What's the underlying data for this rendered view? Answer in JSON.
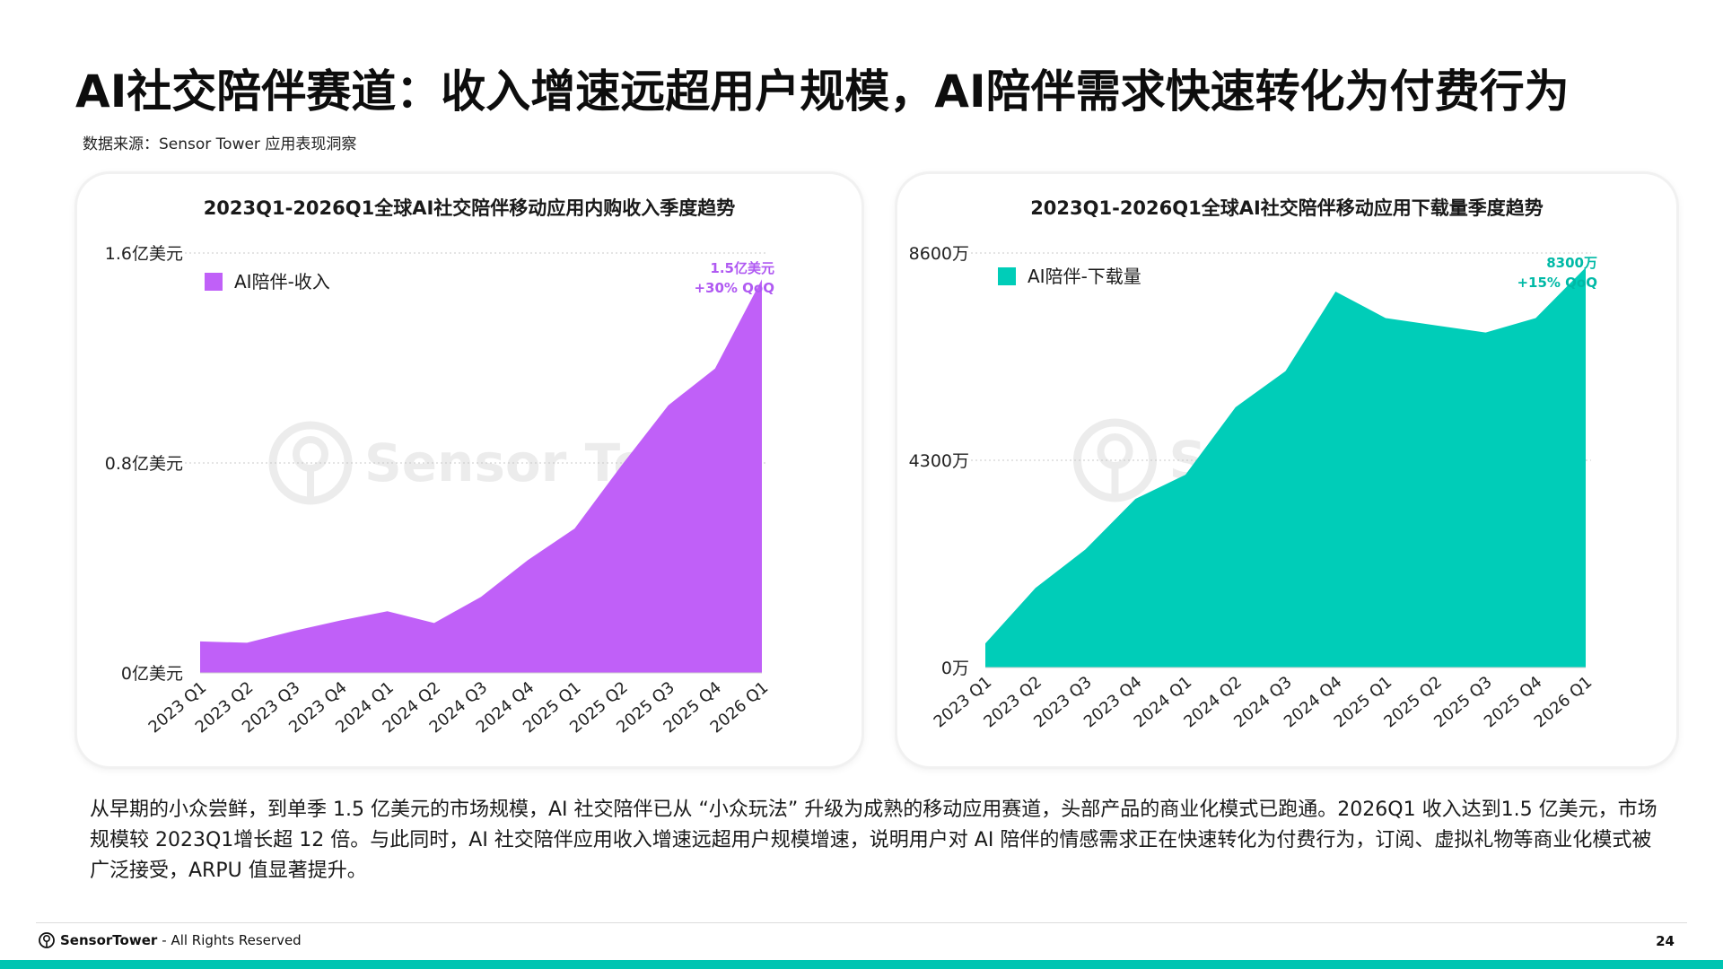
{
  "title": "AI社交陪伴赛道：收入增速远超用户规模，AI陪伴需求快速转化为付费行为",
  "source": "数据来源：Sensor Tower 应用表现洞察",
  "watermark": "Sensor Tower",
  "description": "从早期的小众尝鲜，到单季 1.5 亿美元的市场规模，AI 社交陪伴已从 “小众玩法” 升级为成熟的移动应用赛道，头部产品的商业化模式已跑通。2026Q1 收入达到1.5 亿美元，市场规模较 2023Q1增长超 12 倍。与此同时，AI 社交陪伴应用收入增速远超用户规模增速，说明用户对 AI 陪伴的情感需求正在快速转化为付费行为，订阅、虚拟礼物等商业化模式被广泛接受，ARPU 值显著提升。",
  "footer": {
    "brand": "SensorTower",
    "rights": "- All Rights Reserved",
    "page_number": "24"
  },
  "colors": {
    "revenue": "#c060f8",
    "downloads": "#00cdb8",
    "accent_bar": "#00c5b2"
  },
  "chart_data": [
    {
      "type": "area",
      "title": "2023Q1-2026Q1全球AI社交陪伴移动应用内购收入季度趋势",
      "categories": [
        "2023 Q1",
        "2023 Q2",
        "2023 Q3",
        "2023 Q4",
        "2024 Q1",
        "2024 Q2",
        "2024 Q3",
        "2024 Q4",
        "2025 Q1",
        "2025 Q2",
        "2025 Q3",
        "2025 Q4",
        "2026 Q1"
      ],
      "series": [
        {
          "name": "AI陪伴-收入",
          "color": "#c060f8",
          "values": [
            0.12,
            0.115,
            0.16,
            0.2,
            0.235,
            0.19,
            0.29,
            0.43,
            0.55,
            0.79,
            1.02,
            1.16,
            1.5
          ]
        }
      ],
      "ylim": [
        0,
        1.6
      ],
      "yticks": [
        0,
        0.8,
        1.6
      ],
      "ytick_labels": [
        "0亿美元",
        "0.8亿美元",
        "1.6亿美元"
      ],
      "annotation": [
        "1.5亿美元",
        "+30% QoQ"
      ],
      "grid": true,
      "legend": "top-left"
    },
    {
      "type": "area",
      "title": "2023Q1-2026Q1全球AI社交陪伴移动应用下载量季度趋势",
      "categories": [
        "2023 Q1",
        "2023 Q2",
        "2023 Q3",
        "2023 Q4",
        "2024 Q1",
        "2024 Q2",
        "2024 Q3",
        "2024 Q4",
        "2025 Q1",
        "2025 Q2",
        "2025 Q3",
        "2025 Q4",
        "2026 Q1"
      ],
      "series": [
        {
          "name": "AI陪伴-下载量",
          "color": "#00cdb8",
          "values": [
            5000,
            16500,
            24500,
            35000,
            40000,
            54000,
            61500,
            78000,
            72500,
            71000,
            69500,
            72500,
            83000
          ]
        }
      ],
      "ylim": [
        0,
        86000
      ],
      "yticks": [
        0,
        43000,
        86000
      ],
      "ytick_labels": [
        "0万",
        "4300万",
        "8600万"
      ],
      "annotation": [
        "8300万",
        "+15% QoQ"
      ],
      "grid": true,
      "legend": "top-left"
    }
  ]
}
